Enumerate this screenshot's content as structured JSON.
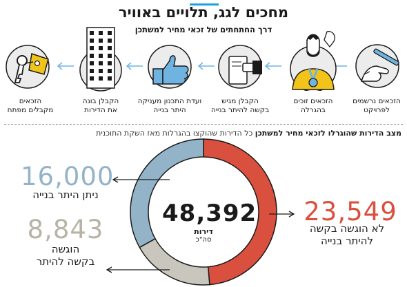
{
  "header": {
    "title": "מחכים לגג, תלויים באוויר",
    "subtitle": "דרך החתחתים של זכאי מחיר למשתכן"
  },
  "steps": [
    {
      "label": "הזכאים נרשמים\nלפרויקט",
      "icon": "hand-writing-icon"
    },
    {
      "label": "הזכאים זוכים\nבהגרלה",
      "icon": "winner-medal-icon"
    },
    {
      "label": "הקבלן מגיש\nבקשה להיתר בנייה",
      "icon": "document-submit-icon"
    },
    {
      "label": "ועדת התכנון מעניקה\nהיתר בנייה",
      "icon": "thumbs-up-icon"
    },
    {
      "label": "הקבלן בונה\nאת הדירות",
      "icon": "building-icon"
    },
    {
      "label": "הזכאים\nמקבלים מפתח",
      "icon": "keys-icon"
    }
  ],
  "section": {
    "title_bold": "מצב הדירות שהוגרלו לזכאי מחיר למשתכן",
    "title_rest": "כל הדירות שהוקצו בהגרלות מאז השקת התוכנית"
  },
  "chart_data": {
    "type": "pie",
    "style": "donut",
    "total": {
      "value": "48,392",
      "unit": "דירות",
      "note": "סה\"כ"
    },
    "slices": [
      {
        "name": "לא הוגשה בקשה\nלהיתר בנייה",
        "value": 23549,
        "display": "23,549",
        "color": "#d9503f"
      },
      {
        "name": "הוגשה\nבקשה להיתר",
        "value": 8843,
        "display": "8,843",
        "color": "#c9c6bd"
      },
      {
        "name": "ניתן היתר בנייה",
        "value": 16000,
        "display": "16,000",
        "color": "#93b4c8"
      }
    ]
  },
  "colors": {
    "accent_blue": "#1aa3d8",
    "red": "#d9503f",
    "grey": "#c9c6bd",
    "steel_blue": "#93b4c8",
    "icon_yellow": "#f2c419",
    "icon_blue": "#6fb4e0"
  }
}
